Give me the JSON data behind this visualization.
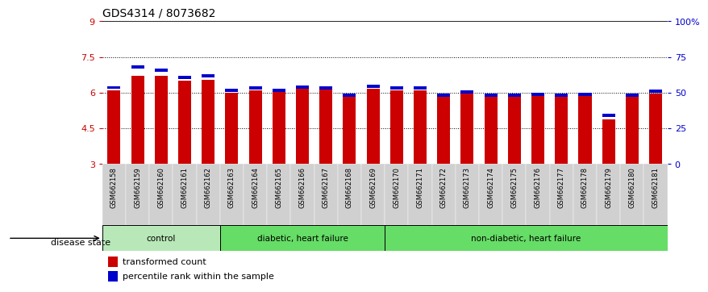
{
  "title": "GDS4314 / 8073682",
  "samples": [
    "GSM662158",
    "GSM662159",
    "GSM662160",
    "GSM662161",
    "GSM662162",
    "GSM662163",
    "GSM662164",
    "GSM662165",
    "GSM662166",
    "GSM662167",
    "GSM662168",
    "GSM662169",
    "GSM662170",
    "GSM662171",
    "GSM662172",
    "GSM662173",
    "GSM662174",
    "GSM662175",
    "GSM662176",
    "GSM662177",
    "GSM662178",
    "GSM662179",
    "GSM662180",
    "GSM662181"
  ],
  "red_values": [
    6.1,
    6.7,
    6.7,
    6.5,
    6.55,
    6.0,
    6.1,
    6.05,
    6.15,
    6.15,
    5.85,
    6.15,
    6.1,
    6.1,
    5.87,
    5.97,
    5.87,
    5.93,
    5.93,
    5.87,
    5.93,
    4.87,
    5.95,
    5.97
  ],
  "blue_values": [
    6.15,
    7.02,
    6.87,
    6.57,
    6.63,
    6.03,
    6.13,
    6.03,
    6.18,
    6.13,
    5.82,
    6.2,
    6.13,
    6.12,
    5.82,
    5.97,
    5.84,
    5.82,
    5.87,
    5.82,
    5.87,
    4.97,
    5.82,
    6.0
  ],
  "ylim_left": [
    3,
    9
  ],
  "ylim_right": [
    0,
    100
  ],
  "yticks_left": [
    3,
    4.5,
    6,
    7.5,
    9
  ],
  "yticks_right": [
    0,
    25,
    50,
    75,
    100
  ],
  "ytick_labels_right": [
    "0",
    "25",
    "50",
    "75",
    "100%"
  ],
  "bar_color_red": "#cc0000",
  "bar_color_blue": "#0000cc",
  "bar_width": 0.55,
  "legend_red": "transformed count",
  "legend_blue": "percentile rank within the sample",
  "groups": [
    {
      "label": "control",
      "start": 0,
      "end": 5,
      "color": "#b8e8b8"
    },
    {
      "label": "diabetic, heart failure",
      "start": 5,
      "end": 12,
      "color": "#66dd66"
    },
    {
      "label": "non-diabetic, heart failure",
      "start": 12,
      "end": 24,
      "color": "#66dd66"
    }
  ],
  "disease_state_label": "disease state"
}
